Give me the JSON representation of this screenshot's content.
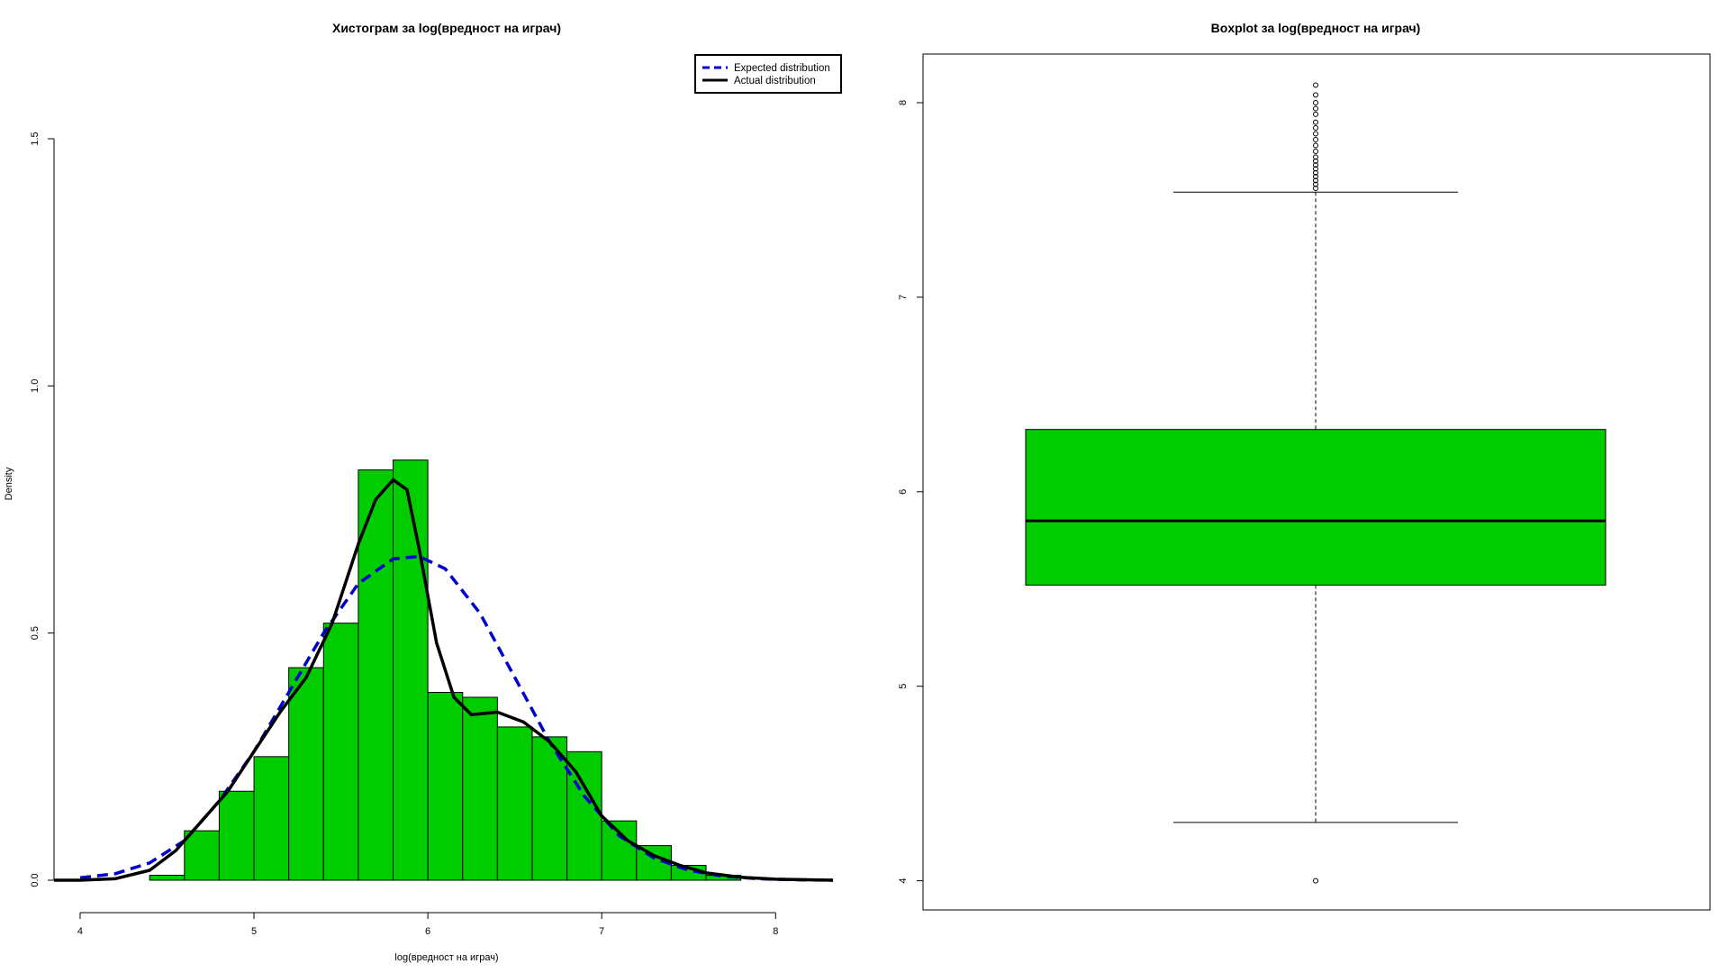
{
  "chart_data": [
    {
      "type": "histogram",
      "title": "Хистограм за  log(вредност на играч)",
      "xlabel": "log(вредност на играч)",
      "ylabel": "Density",
      "xlim": [
        3.85,
        8.33
      ],
      "ylim": [
        0,
        1.5
      ],
      "x_ticks": [
        "4",
        "5",
        "6",
        "7",
        "8"
      ],
      "y_ticks": [
        "0.0",
        "0.5",
        "1.0",
        "1.5"
      ],
      "bin_width": 0.2,
      "bins": [
        4.4,
        4.6,
        4.8,
        5.0,
        5.2,
        5.4,
        5.6,
        5.8,
        6.0,
        6.2,
        6.4,
        6.6,
        6.8,
        7.0,
        7.2,
        7.4,
        7.6
      ],
      "density": [
        0.01,
        0.1,
        0.18,
        0.25,
        0.43,
        0.52,
        0.83,
        0.85,
        0.38,
        0.37,
        0.31,
        0.29,
        0.26,
        0.12,
        0.07,
        0.03,
        0.01
      ],
      "bar_color": "#00CC00",
      "series": [
        {
          "name": "Expected distribution",
          "color": "#0000CD",
          "style": "dashed",
          "x": [
            4.0,
            4.2,
            4.4,
            4.6,
            4.8,
            5.0,
            5.2,
            5.4,
            5.6,
            5.8,
            5.95,
            6.1,
            6.3,
            6.5,
            6.7,
            6.9,
            7.1,
            7.3,
            7.5,
            7.7,
            7.9,
            8.1,
            8.33
          ],
          "y": [
            0.005,
            0.013,
            0.035,
            0.08,
            0.16,
            0.26,
            0.38,
            0.5,
            0.6,
            0.65,
            0.655,
            0.63,
            0.54,
            0.41,
            0.28,
            0.17,
            0.09,
            0.045,
            0.02,
            0.008,
            0.003,
            0.001,
            0.0
          ]
        },
        {
          "name": "Actual distribution",
          "color": "#000000",
          "style": "solid",
          "x": [
            3.85,
            4.0,
            4.2,
            4.4,
            4.55,
            4.7,
            4.85,
            5.0,
            5.15,
            5.3,
            5.45,
            5.6,
            5.7,
            5.8,
            5.88,
            5.95,
            6.05,
            6.15,
            6.25,
            6.4,
            6.55,
            6.7,
            6.85,
            7.0,
            7.15,
            7.3,
            7.45,
            7.6,
            7.8,
            8.0,
            8.33
          ],
          "y": [
            0.0,
            0.0,
            0.003,
            0.02,
            0.06,
            0.12,
            0.18,
            0.26,
            0.34,
            0.41,
            0.52,
            0.68,
            0.77,
            0.81,
            0.79,
            0.67,
            0.48,
            0.37,
            0.335,
            0.34,
            0.32,
            0.28,
            0.22,
            0.13,
            0.08,
            0.05,
            0.03,
            0.015,
            0.006,
            0.002,
            0.0
          ]
        }
      ],
      "legend": {
        "position": "top-right",
        "entries": [
          "Expected distribution",
          "Actual distribution"
        ]
      }
    },
    {
      "type": "boxplot",
      "title": "Boxplot за  log(вредност на играч)",
      "ylim": [
        3.85,
        8.25
      ],
      "y_ticks": [
        "4",
        "5",
        "6",
        "7",
        "8"
      ],
      "box_color": "#00CC00",
      "whisker_low": 4.3,
      "q1": 5.52,
      "median": 5.85,
      "q3": 6.32,
      "whisker_high": 7.54,
      "outliers": [
        4.0,
        7.56,
        7.58,
        7.6,
        7.62,
        7.64,
        7.66,
        7.68,
        7.7,
        7.72,
        7.75,
        7.78,
        7.81,
        7.84,
        7.87,
        7.9,
        7.94,
        7.97,
        8.0,
        8.04,
        8.09
      ]
    }
  ]
}
